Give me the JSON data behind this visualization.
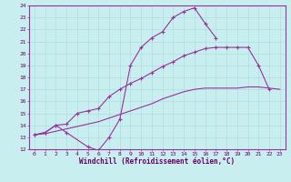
{
  "xlabel": "Windchill (Refroidissement éolien,°C)",
  "ylabel": "",
  "background_color": "#c8eef0",
  "grid_color": "#b0dde0",
  "line_color": "#993399",
  "xmin": -0.5,
  "xmax": 23.5,
  "ymin": 12,
  "ymax": 24,
  "line1_x": [
    0,
    1,
    2,
    3,
    5,
    6,
    7,
    8,
    9,
    10,
    11,
    12,
    13,
    14,
    15,
    16,
    17
  ],
  "line1_y": [
    13.2,
    13.4,
    14.0,
    13.4,
    12.2,
    11.9,
    13.0,
    14.5,
    19.0,
    20.5,
    21.3,
    21.8,
    23.0,
    23.5,
    23.8,
    22.5,
    21.3
  ],
  "line2_x": [
    0,
    1,
    2,
    3,
    4,
    5,
    6,
    7,
    8,
    9,
    10,
    11,
    12,
    13,
    14,
    15,
    16,
    17,
    18,
    19,
    20,
    21,
    22
  ],
  "line2_y": [
    13.2,
    13.4,
    14.0,
    14.1,
    15.0,
    15.2,
    15.4,
    16.4,
    17.0,
    17.5,
    17.9,
    18.4,
    18.9,
    19.3,
    19.8,
    20.1,
    20.4,
    20.5,
    20.5,
    20.5,
    20.5,
    19.0,
    17.0
  ],
  "line3_x": [
    0,
    1,
    2,
    3,
    4,
    5,
    6,
    7,
    8,
    9,
    10,
    11,
    12,
    13,
    14,
    15,
    16,
    17,
    18,
    19,
    20,
    21,
    22,
    23
  ],
  "line3_y": [
    13.2,
    13.3,
    13.5,
    13.7,
    13.9,
    14.1,
    14.3,
    14.6,
    14.9,
    15.2,
    15.5,
    15.8,
    16.2,
    16.5,
    16.8,
    17.0,
    17.1,
    17.1,
    17.1,
    17.1,
    17.2,
    17.2,
    17.1,
    17.0
  ],
  "yticks": [
    12,
    13,
    14,
    15,
    16,
    17,
    18,
    19,
    20,
    21,
    22,
    23,
    24
  ],
  "xticks": [
    0,
    1,
    2,
    3,
    4,
    5,
    6,
    7,
    8,
    9,
    10,
    11,
    12,
    13,
    14,
    15,
    16,
    17,
    18,
    19,
    20,
    21,
    22,
    23
  ]
}
